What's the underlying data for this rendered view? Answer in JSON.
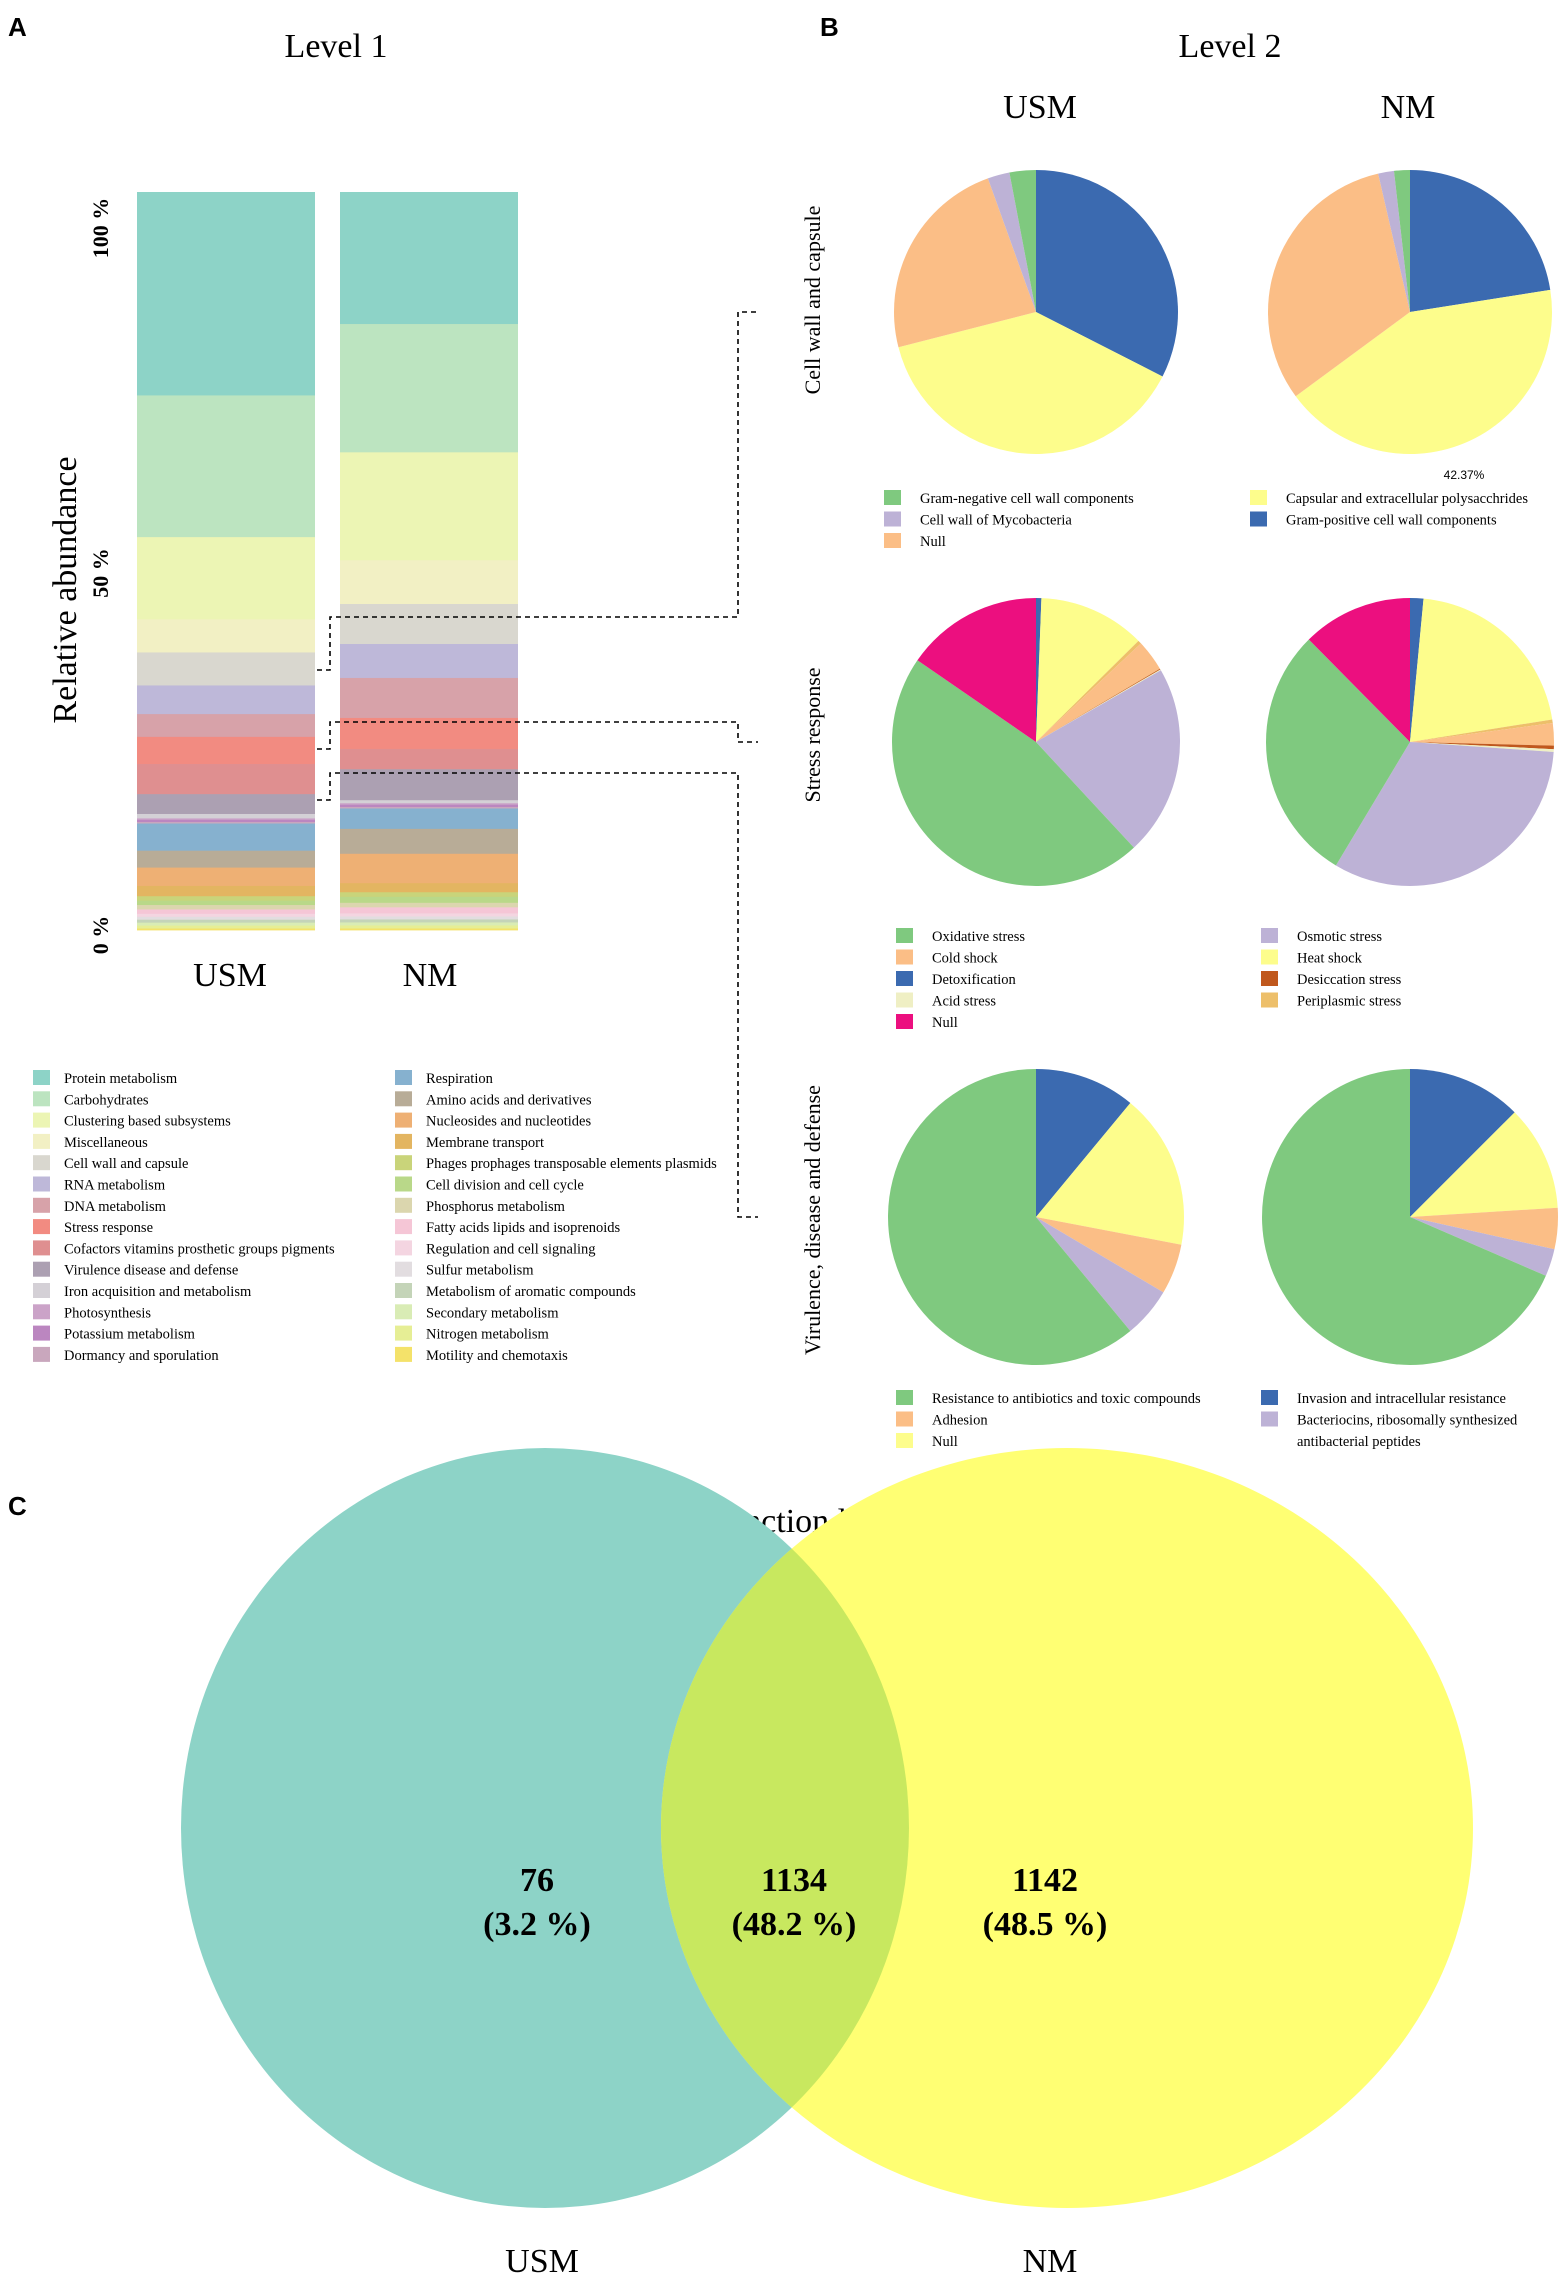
{
  "panels": {
    "a_letter": "A",
    "b_letter": "B",
    "c_letter": "C",
    "level1_title": "Level 1",
    "level2_title": "Level 2",
    "function_title": "Function level"
  },
  "level1": {
    "ylabel": "Relative abundance",
    "yticks": [
      "100 %",
      "50 %",
      "0 %"
    ],
    "groups": [
      "USM",
      "NM"
    ],
    "categories": [
      {
        "name": "Protein metabolism",
        "color": "#8dd3c7",
        "usm": 27.7,
        "nm": 17.5
      },
      {
        "name": "Carbohydrates",
        "color": "#bce4c0",
        "usm": 19.3,
        "nm": 17.0
      },
      {
        "name": "Clustering based subsystems",
        "color": "#ecf5b4",
        "usm": 11.2,
        "nm": 14.3
      },
      {
        "name": "Miscellaneous",
        "color": "#f2f0c4",
        "usm": 4.5,
        "nm": 5.8
      },
      {
        "name": "Cell wall and capsule",
        "color": "#d9d7cf",
        "usm": 4.5,
        "nm": 5.3
      },
      {
        "name": "RNA metabolism",
        "color": "#beb8d9",
        "usm": 3.9,
        "nm": 4.5
      },
      {
        "name": "DNA metabolism",
        "color": "#d7a2a9",
        "usm": 3.1,
        "nm": 5.3
      },
      {
        "name": "Stress response",
        "color": "#f28b81",
        "usm": 3.7,
        "nm": 4.1
      },
      {
        "name": "Cofactors vitamins prosthetic groups pigments",
        "color": "#df8f90",
        "usm": 4.1,
        "nm": 2.7
      },
      {
        "name": "Virulence disease and defense",
        "color": "#aca0b2",
        "usm": 2.7,
        "nm": 4.1
      },
      {
        "name": "Iron acquisition and metabolism",
        "color": "#d4d0d6",
        "usm": 0.6,
        "nm": 0.4
      },
      {
        "name": "Photosynthesis",
        "color": "#cba3c8",
        "usm": 0.2,
        "nm": 0.2
      },
      {
        "name": "Potassium metabolism",
        "color": "#bb86c0",
        "usm": 0.3,
        "nm": 0.3
      },
      {
        "name": "Dormancy and sporulation",
        "color": "#c9a7bd",
        "usm": 0.2,
        "nm": 0.2
      },
      {
        "name": "Respiration",
        "color": "#86b1cf",
        "usm": 3.7,
        "nm": 2.7
      },
      {
        "name": "Amino acids and derivatives",
        "color": "#b8ac97",
        "usm": 2.3,
        "nm": 3.3
      },
      {
        "name": "Nucleosides and nucleotides",
        "color": "#eeb074",
        "usm": 2.5,
        "nm": 3.9
      },
      {
        "name": "Membrane transport",
        "color": "#e3b561",
        "usm": 1.4,
        "nm": 1.2
      },
      {
        "name": "Phages prophages transposable elements plasmids",
        "color": "#c9d47a",
        "usm": 0.6,
        "nm": 0.6
      },
      {
        "name": "Cell division and cell cycle",
        "color": "#b9d889",
        "usm": 0.6,
        "nm": 0.8
      },
      {
        "name": "Phosphorus metabolism",
        "color": "#dbd6ae",
        "usm": 0.6,
        "nm": 0.6
      },
      {
        "name": "Fatty acids lipids and isoprenoids",
        "color": "#f5c6d6",
        "usm": 0.6,
        "nm": 0.8
      },
      {
        "name": "Regulation and cell signaling",
        "color": "#f4d5e1",
        "usm": 0.4,
        "nm": 0.4
      },
      {
        "name": "Sulfur metabolism",
        "color": "#e2dde0",
        "usm": 0.4,
        "nm": 0.4
      },
      {
        "name": "Metabolism of aromatic compounds",
        "color": "#c4d4b8",
        "usm": 0.4,
        "nm": 0.4
      },
      {
        "name": "Secondary metabolism",
        "color": "#d9ecb5",
        "usm": 0.4,
        "nm": 0.4
      },
      {
        "name": "Nitrogen metabolism",
        "color": "#e6ee95",
        "usm": 0.4,
        "nm": 0.4
      },
      {
        "name": "Motility and chemotaxis",
        "color": "#f4e26a",
        "usm": 0.2,
        "nm": 0.2
      }
    ]
  },
  "level2": {
    "columns": [
      "USM",
      "NM"
    ],
    "sections": [
      {
        "key": "cell_wall",
        "title": "Cell wall and capsule",
        "annotation": "42.37%",
        "slices": [
          {
            "name": "Gram-positive cell wall components",
            "color": "#3b6ab0",
            "usm": 32.5,
            "nm": 22.5
          },
          {
            "name": "Capsular and extracellular polysacchrides",
            "color": "#fdfd8c",
            "usm": 38.5,
            "nm": 42.37
          },
          {
            "name": "Null",
            "color": "#fbbe86",
            "usm": 23.5,
            "nm": 31.5
          },
          {
            "name": "Cell wall of Mycobacteria",
            "color": "#bdb2d6",
            "usm": 2.5,
            "nm": 1.8
          },
          {
            "name": "Gram-negative cell wall components",
            "color": "#7fc97f",
            "usm": 3.0,
            "nm": 1.8
          }
        ],
        "legend": [
          {
            "name": "Gram-negative cell wall components",
            "color": "#7fc97f"
          },
          {
            "name": "Capsular and extracellular polysacchrides",
            "color": "#fdfd8c"
          },
          {
            "name": "Cell wall of Mycobacteria",
            "color": "#bdb2d6"
          },
          {
            "name": "Gram-positive cell wall components",
            "color": "#3b6ab0"
          },
          {
            "name": "Null",
            "color": "#fbbe86"
          }
        ]
      },
      {
        "key": "stress",
        "title": "Stress response",
        "slices": [
          {
            "name": "Detoxification",
            "color": "#3b6ab0",
            "usm": 0.6,
            "nm": 1.5
          },
          {
            "name": "Heat shock",
            "color": "#fdfd8c",
            "usm": 12.0,
            "nm": 21.0
          },
          {
            "name": "Periplasmic stress",
            "color": "#edbf6a",
            "usm": 0.4,
            "nm": 0.4
          },
          {
            "name": "Cold shock",
            "color": "#fbbe86",
            "usm": 3.5,
            "nm": 2.5
          },
          {
            "name": "Desiccation stress",
            "color": "#c0581d",
            "usm": 0.1,
            "nm": 0.4
          },
          {
            "name": "Acid stress",
            "color": "#efefc4",
            "usm": 0.1,
            "nm": 0.3
          },
          {
            "name": "Osmotic stress",
            "color": "#bdb2d6",
            "usm": 21.4,
            "nm": 32.5
          },
          {
            "name": "Oxidative stress",
            "color": "#7fc97f",
            "usm": 46.5,
            "nm": 29.0
          },
          {
            "name": "Null",
            "color": "#ec0f7f",
            "usm": 15.4,
            "nm": 12.4
          }
        ],
        "legend": [
          {
            "name": "Oxidative stress",
            "color": "#7fc97f"
          },
          {
            "name": "Osmotic stress",
            "color": "#bdb2d6"
          },
          {
            "name": "Cold shock",
            "color": "#fbbe86"
          },
          {
            "name": "Heat shock",
            "color": "#fdfd8c"
          },
          {
            "name": "Detoxification",
            "color": "#3b6ab0"
          },
          {
            "name": "Desiccation stress",
            "color": "#c0581d"
          },
          {
            "name": "Acid stress",
            "color": "#efefc4"
          },
          {
            "name": "Periplasmic stress",
            "color": "#edbf6a"
          },
          {
            "name": "Null",
            "color": "#ec0f7f"
          }
        ]
      },
      {
        "key": "virulence",
        "title": "Virulence, disease and defense",
        "slices": [
          {
            "name": "Invasion and intracellular resistance",
            "color": "#3b6ab0",
            "usm": 11.0,
            "nm": 12.5
          },
          {
            "name": "Null",
            "color": "#fdfd8c",
            "usm": 17.0,
            "nm": 11.5
          },
          {
            "name": "Adhesion",
            "color": "#fbbe86",
            "usm": 5.5,
            "nm": 4.5
          },
          {
            "name": "Bacteriocins, ribosomally synthesized antibacterial peptides",
            "color": "#bdb2d6",
            "usm": 5.5,
            "nm": 3.0
          },
          {
            "name": "Resistance to antibiotics and toxic compounds",
            "color": "#7fc97f",
            "usm": 61.0,
            "nm": 68.5
          }
        ],
        "legend": [
          {
            "name": "Resistance to antibiotics and toxic compounds",
            "color": "#7fc97f"
          },
          {
            "name": "Invasion and intracellular resistance",
            "color": "#3b6ab0"
          },
          {
            "name": "Adhesion",
            "color": "#fbbe86"
          },
          {
            "name": "Bacteriocins, ribosomally synthesized",
            "color": "#bdb2d6"
          },
          {
            "name": "Null",
            "color": "#fdfd8c"
          }
        ],
        "legend_extra": "antibacterial peptides"
      }
    ]
  },
  "chart_data": [
    {
      "type": "bar",
      "title": "Level 1",
      "ylabel": "Relative abundance",
      "stacked": true,
      "categories": [
        "USM",
        "NM"
      ],
      "ylim": [
        0,
        100
      ],
      "yticks": [
        "0 %",
        "50 %",
        "100 %"
      ],
      "note": "Stacked relative abundance (%) per subsystem; see level1.categories for values"
    },
    {
      "type": "pie",
      "title": "Level 2",
      "note": "Three subsystem breakdowns (Cell wall and capsule, Stress response, Virulence, disease and defense) for USM and NM; see level2.sections"
    },
    {
      "type": "venn",
      "title": "Function level",
      "sets": [
        "USM",
        "NM"
      ],
      "regions": [
        {
          "label": "USM only",
          "count": "76",
          "percent": "(3.2 %)"
        },
        {
          "label": "Shared",
          "count": "1134",
          "percent": "(48.2 %)"
        },
        {
          "label": "NM only",
          "count": "1142",
          "percent": "(48.5 %)"
        }
      ],
      "colors": {
        "USM": "#8dd3c7",
        "NM": "#ffff73",
        "overlap": "#c8e85f"
      }
    }
  ]
}
